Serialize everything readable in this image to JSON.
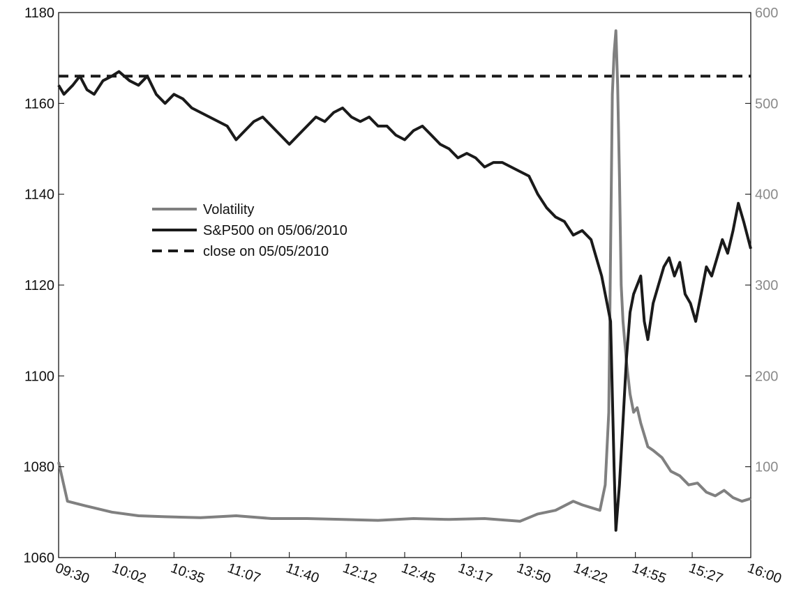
{
  "chart_data": {
    "type": "line",
    "title": "",
    "xlabel": "",
    "ylabel": "",
    "y2label": "",
    "x_ticks": [
      "09:30",
      "10:02",
      "10:35",
      "11:07",
      "11:40",
      "12:12",
      "12:45",
      "13:17",
      "13:50",
      "14:22",
      "14:55",
      "15:27",
      "16:00"
    ],
    "ylim": [
      1060,
      1180
    ],
    "y_ticks": [
      1060,
      1080,
      1100,
      1120,
      1140,
      1160,
      1180
    ],
    "y2lim": [
      0,
      600
    ],
    "y2_ticks": [
      100,
      200,
      300,
      400,
      500,
      600
    ],
    "legend_position": "center-left",
    "series": [
      {
        "name": "Volatility",
        "axis": "right",
        "color": "#808080",
        "style": "solid",
        "x": [
          "09:30",
          "09:35",
          "09:45",
          "10:00",
          "10:15",
          "10:30",
          "10:50",
          "11:10",
          "11:30",
          "11:50",
          "12:10",
          "12:30",
          "12:50",
          "13:10",
          "13:30",
          "13:50",
          "14:00",
          "14:10",
          "14:15",
          "14:20",
          "14:25",
          "14:30",
          "14:35",
          "14:38",
          "14:40",
          "14:42",
          "14:43",
          "14:44",
          "14:45",
          "14:46",
          "14:47",
          "14:48",
          "14:50",
          "14:52",
          "14:54",
          "14:56",
          "14:58",
          "15:00",
          "15:02",
          "15:05",
          "15:10",
          "15:15",
          "15:20",
          "15:25",
          "15:30",
          "15:35",
          "15:40",
          "15:45",
          "15:50",
          "15:55",
          "16:00"
        ],
        "values": [
          105,
          62,
          57,
          50,
          46,
          45,
          44,
          46,
          43,
          43,
          42,
          41,
          43,
          42,
          43,
          40,
          48,
          52,
          57,
          62,
          58,
          55,
          52,
          80,
          160,
          510,
          555,
          580,
          520,
          420,
          300,
          260,
          215,
          180,
          160,
          165,
          148,
          135,
          122,
          118,
          110,
          95,
          90,
          80,
          82,
          72,
          68,
          74,
          66,
          62,
          65
        ]
      },
      {
        "name": "S&P500 on 05/06/2010",
        "axis": "left",
        "color": "#1a1a1a",
        "style": "solid",
        "x": [
          "09:30",
          "09:33",
          "09:38",
          "09:42",
          "09:46",
          "09:50",
          "09:55",
          "10:00",
          "10:04",
          "10:10",
          "10:15",
          "10:20",
          "10:25",
          "10:30",
          "10:35",
          "10:40",
          "10:45",
          "10:50",
          "10:55",
          "11:00",
          "11:05",
          "11:10",
          "11:15",
          "11:20",
          "11:25",
          "11:30",
          "11:35",
          "11:40",
          "11:45",
          "11:50",
          "11:55",
          "12:00",
          "12:05",
          "12:10",
          "12:15",
          "12:20",
          "12:25",
          "12:30",
          "12:35",
          "12:40",
          "12:45",
          "12:50",
          "12:55",
          "13:00",
          "13:05",
          "13:10",
          "13:15",
          "13:20",
          "13:25",
          "13:30",
          "13:35",
          "13:40",
          "13:45",
          "13:50",
          "13:55",
          "14:00",
          "14:05",
          "14:10",
          "14:15",
          "14:20",
          "14:25",
          "14:30",
          "14:33",
          "14:36",
          "14:39",
          "14:41",
          "14:43",
          "14:44",
          "14:46",
          "14:48",
          "14:50",
          "14:52",
          "14:54",
          "14:56",
          "14:58",
          "15:00",
          "15:02",
          "15:05",
          "15:08",
          "15:11",
          "15:14",
          "15:17",
          "15:20",
          "15:23",
          "15:26",
          "15:29",
          "15:32",
          "15:35",
          "15:38",
          "15:41",
          "15:44",
          "15:47",
          "15:50",
          "15:53",
          "15:56",
          "16:00"
        ],
        "values": [
          1164,
          1162,
          1164,
          1166,
          1163,
          1162,
          1165,
          1166,
          1167,
          1165,
          1164,
          1166,
          1162,
          1160,
          1162,
          1161,
          1159,
          1158,
          1157,
          1156,
          1155,
          1152,
          1154,
          1156,
          1157,
          1155,
          1153,
          1151,
          1153,
          1155,
          1157,
          1156,
          1158,
          1159,
          1157,
          1156,
          1157,
          1155,
          1155,
          1153,
          1152,
          1154,
          1155,
          1153,
          1151,
          1150,
          1148,
          1149,
          1148,
          1146,
          1147,
          1147,
          1146,
          1145,
          1144,
          1140,
          1137,
          1135,
          1134,
          1131,
          1132,
          1130,
          1126,
          1122,
          1116,
          1112,
          1080,
          1066,
          1076,
          1090,
          1104,
          1114,
          1118,
          1120,
          1122,
          1112,
          1108,
          1116,
          1120,
          1124,
          1126,
          1122,
          1125,
          1118,
          1116,
          1112,
          1118,
          1124,
          1122,
          1126,
          1130,
          1127,
          1132,
          1138,
          1134,
          1128
        ]
      },
      {
        "name": "close on 05/05/2010",
        "axis": "left",
        "color": "#1a1a1a",
        "style": "dashed",
        "x": [
          "09:30",
          "16:00"
        ],
        "values": [
          1166,
          1166
        ]
      }
    ]
  }
}
